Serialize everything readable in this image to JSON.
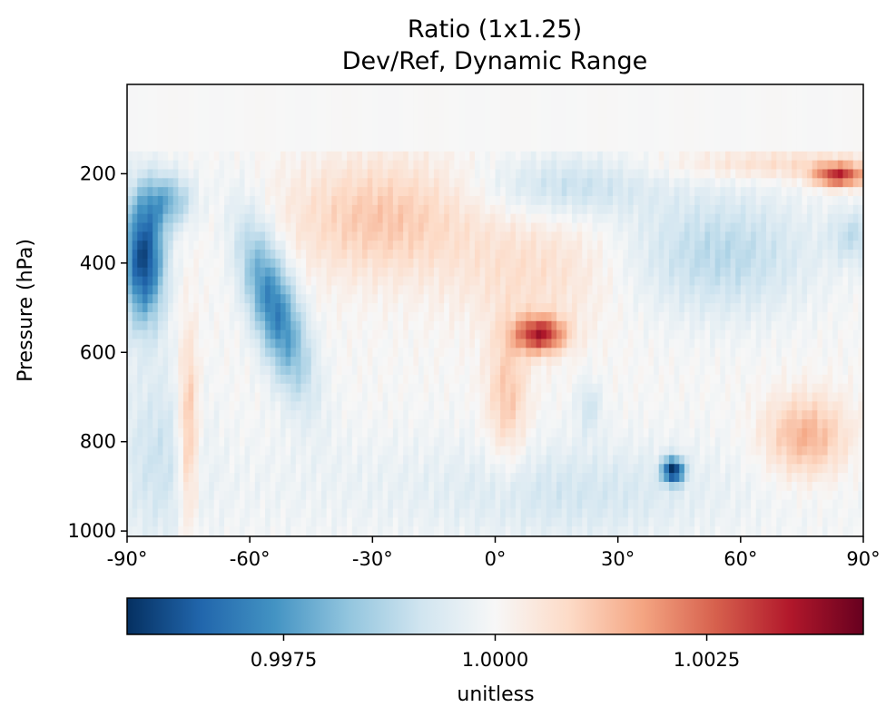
{
  "chart_data": {
    "type": "heatmap",
    "title": "Ratio (1x1.25)",
    "subtitle": "Dev/Ref, Dynamic Range",
    "xlabel": "",
    "ylabel": "Pressure (hPa)",
    "x_range": [
      -90,
      90
    ],
    "y_range": [
      1012,
      0
    ],
    "x_ticks": [
      -90,
      -60,
      -30,
      0,
      30,
      60,
      90
    ],
    "x_tick_labels": [
      "-90°",
      "-60°",
      "-30°",
      "0°",
      "30°",
      "60°",
      "90°"
    ],
    "y_ticks": [
      200,
      400,
      600,
      800,
      1000
    ],
    "y_tick_labels": [
      "200",
      "400",
      "600",
      "800",
      "1000"
    ],
    "colormap": "RdBu_r",
    "colorbar": {
      "orientation": "horizontal",
      "label": "unitless",
      "range": [
        0.99565,
        1.00435
      ],
      "ticks": [
        0.9975,
        1.0,
        1.0025
      ],
      "tick_labels": [
        "0.9975",
        "1.0000",
        "1.0025"
      ]
    },
    "grid": false,
    "notable_features": [
      {
        "lat": [
          -90,
          -78
        ],
        "pressure": [
          180,
          580
        ],
        "value": 0.9957
      },
      {
        "lat": [
          -78,
          -72
        ],
        "pressure": [
          560,
          1012
        ],
        "value": 1.0015
      },
      {
        "lat": [
          -68,
          -48
        ],
        "pressure": [
          280,
          640
        ],
        "value": 0.9963
      },
      {
        "lat": [
          -45,
          -10
        ],
        "pressure": [
          150,
          480
        ],
        "value": 1.0012
      },
      {
        "lat": [
          4,
          16
        ],
        "pressure": [
          500,
          620
        ],
        "value": 1.0035
      },
      {
        "lat": [
          40,
          47
        ],
        "pressure": [
          830,
          900
        ],
        "value": 0.9957
      },
      {
        "lat": [
          74,
          90
        ],
        "pressure": [
          180,
          240
        ],
        "value": 1.004
      },
      {
        "lat": [
          62,
          90
        ],
        "pressure": [
          700,
          900
        ],
        "value": 1.0018
      }
    ]
  }
}
